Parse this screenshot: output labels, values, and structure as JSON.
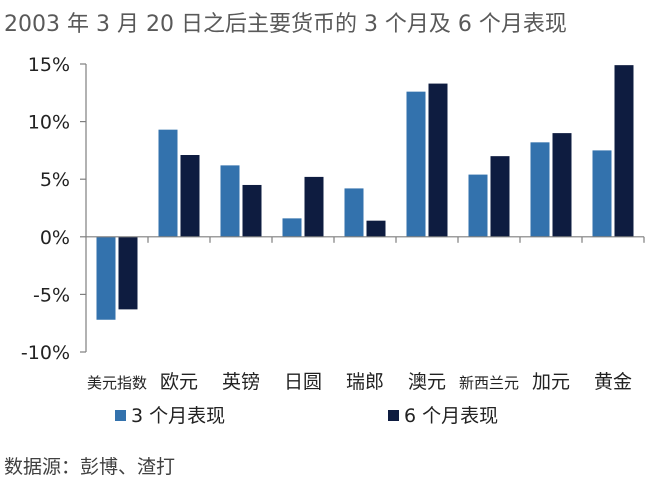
{
  "title": "2003 年 3 月 20 日之后主要货币的 3 个月及 6 个月表现",
  "source": "数据源：彭博、渣打",
  "colors": {
    "series1": "#3372ad",
    "series2": "#0e1c40",
    "axis": "#7f7f7f",
    "text": "#222222"
  },
  "chart_data": {
    "type": "bar",
    "categories": [
      "美元指数",
      "欧元",
      "英镑",
      "日圆",
      "瑞郎",
      "澳元",
      "新西兰元",
      "加元",
      "黄金"
    ],
    "series": [
      {
        "name": "3 个月表现",
        "values": [
          -7.2,
          9.3,
          6.2,
          1.6,
          4.2,
          12.6,
          5.4,
          8.2,
          7.5
        ]
      },
      {
        "name": "6 个月表现",
        "values": [
          -6.3,
          7.1,
          4.5,
          5.2,
          1.4,
          13.3,
          7.0,
          9.0,
          14.9
        ]
      }
    ],
    "yticks": [
      "15%",
      "10%",
      "5%",
      "0%",
      "-5%",
      "-10%"
    ],
    "ylim": [
      -10,
      15
    ],
    "legend_position": "bottom",
    "grid": false
  }
}
